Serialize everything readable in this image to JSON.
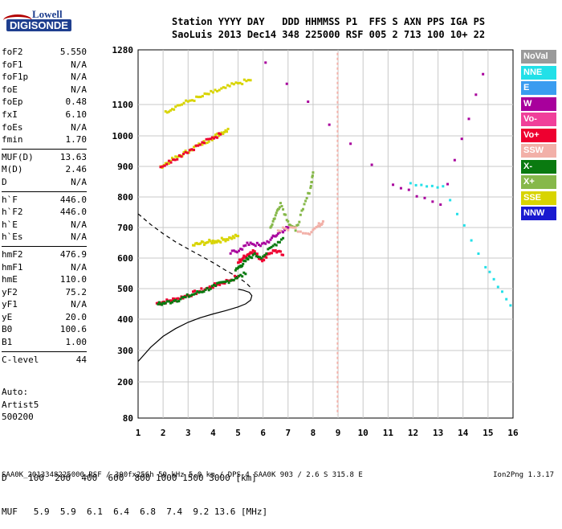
{
  "logo": {
    "top": "Lowell",
    "bottom": "DIGISONDE"
  },
  "header": {
    "line1": "Station YYYY DAY   DDD HHMMSS P1  FFS S AXN PPS IGA PS",
    "line2": "SaoLuis 2013 Dec14 348 225000 RSF 005 2 713 100 10+ 22"
  },
  "params": [
    [
      [
        "foF2",
        "5.550"
      ],
      [
        "foF1",
        "N/A"
      ],
      [
        "foF1p",
        "N/A"
      ],
      [
        "foE",
        "N/A"
      ],
      [
        "foEp",
        "0.48"
      ],
      [
        "fxI",
        "6.10"
      ],
      [
        "foEs",
        "N/A"
      ],
      [
        "fmin",
        "1.70"
      ]
    ],
    [
      [
        "MUF(D)",
        "13.63"
      ],
      [
        "M(D)",
        "2.46"
      ],
      [
        "D",
        "N/A"
      ]
    ],
    [
      [
        "h`F",
        "446.0"
      ],
      [
        "h`F2",
        "446.0"
      ],
      [
        "h`E",
        "N/A"
      ],
      [
        "h`Es",
        "N/A"
      ]
    ],
    [
      [
        "hmF2",
        "476.9"
      ],
      [
        "hmF1",
        "N/A"
      ],
      [
        "hmE",
        "110.0"
      ],
      [
        "yF2",
        "75.2"
      ],
      [
        "yF1",
        "N/A"
      ],
      [
        "yE",
        "20.0"
      ],
      [
        "B0",
        "100.6"
      ],
      [
        "B1",
        "1.00"
      ]
    ],
    [
      [
        "C-level",
        "44"
      ]
    ]
  ],
  "auto": {
    "line1": "Auto:",
    "line2": "Artist5",
    "line3": "500200"
  },
  "dtable": {
    "row1": "D    100  200  400  600  800 1000 1500 3000 [km]",
    "row2": "MUF   5.9  5.9  6.1  6.4  6.8  7.4  9.2 13.6 [MHz]"
  },
  "footer": {
    "left": "SAA0K_2013348225000.RSF / 300fx256h 50 kHz 5.0 km / DPS-4 SAA0K 903 / 2.6 S 315.8 E",
    "right": "Ion2Png 1.3.17"
  },
  "legend": [
    {
      "label": "NoVal",
      "color": "#9a9a9a"
    },
    {
      "label": "NNE",
      "color": "#22e0e8"
    },
    {
      "label": "E",
      "color": "#3a9cf0"
    },
    {
      "label": "W",
      "color": "#a8009c"
    },
    {
      "label": "Vo-",
      "color": "#f0409a"
    },
    {
      "label": "Vo+",
      "color": "#ee0030"
    },
    {
      "label": "SSW",
      "color": "#f2b0a8"
    },
    {
      "label": "X-",
      "color": "#0a7a10"
    },
    {
      "label": "X+",
      "color": "#86b84a"
    },
    {
      "label": "SSE",
      "color": "#d8d400"
    },
    {
      "label": "NNW",
      "color": "#1a1ad0"
    }
  ],
  "chart_data": {
    "type": "scatter",
    "title": "",
    "xlabel": "",
    "ylabel": "",
    "xlim": [
      1,
      16
    ],
    "x_ticks": [
      1,
      2,
      3,
      4,
      5,
      6,
      7,
      8,
      9,
      10,
      11,
      12,
      13,
      14,
      15,
      16
    ],
    "ylim": [
      80,
      1280
    ],
    "y_ticks": [
      80,
      200,
      300,
      400,
      500,
      600,
      700,
      800,
      900,
      1000,
      1100,
      1280
    ],
    "y_scale": "custom-nonlinear",
    "grid": true,
    "lines": [
      {
        "name": "",
        "style": "solid",
        "points": [
          [
            1.0,
            265
          ],
          [
            1.5,
            310
          ],
          [
            2.0,
            345
          ],
          [
            2.5,
            370
          ],
          [
            3.0,
            390
          ],
          [
            3.5,
            405
          ],
          [
            4.0,
            417
          ],
          [
            4.5,
            428
          ],
          [
            5.0,
            440
          ],
          [
            5.3,
            450
          ],
          [
            5.5,
            462
          ],
          [
            5.55,
            476.9
          ],
          [
            5.45,
            488
          ],
          [
            5.2,
            495
          ],
          [
            5.0,
            498
          ]
        ]
      },
      {
        "name": "",
        "style": "dashed",
        "points": [
          [
            1.0,
            745
          ],
          [
            1.5,
            710
          ],
          [
            2.0,
            680
          ],
          [
            2.5,
            653
          ],
          [
            3.0,
            630
          ],
          [
            3.5,
            608
          ],
          [
            4.0,
            585
          ],
          [
            4.5,
            560
          ],
          [
            5.0,
            537
          ],
          [
            5.3,
            520
          ],
          [
            5.55,
            500
          ]
        ]
      }
    ],
    "series": [
      {
        "name": "F2 low trace",
        "color": "#ee0030",
        "points": [
          [
            1.75,
            452
          ],
          [
            2.0,
            456
          ],
          [
            2.3,
            461
          ],
          [
            2.6,
            468
          ],
          [
            3.0,
            478
          ],
          [
            3.4,
            490
          ],
          [
            3.8,
            502
          ],
          [
            4.2,
            514
          ],
          [
            4.6,
            526
          ],
          [
            5.0,
            540
          ]
        ]
      },
      {
        "name": "F2 low trace X",
        "color": "#0a7a10",
        "points": [
          [
            1.8,
            449
          ],
          [
            2.1,
            453
          ],
          [
            2.5,
            462
          ],
          [
            2.9,
            472
          ],
          [
            3.3,
            484
          ],
          [
            3.7,
            496
          ],
          [
            4.1,
            509
          ],
          [
            4.5,
            522
          ],
          [
            4.9,
            534
          ],
          [
            5.3,
            548
          ]
        ]
      },
      {
        "name": "F2 second hop",
        "color": "#d8d400",
        "points": [
          [
            1.9,
            900
          ],
          [
            2.3,
            918
          ],
          [
            2.7,
            936
          ],
          [
            3.1,
            955
          ],
          [
            3.5,
            972
          ],
          [
            3.9,
            990
          ],
          [
            4.3,
            1008
          ],
          [
            4.6,
            1022
          ]
        ]
      },
      {
        "name": "F2 second hop O",
        "color": "#ee0030",
        "points": [
          [
            1.9,
            898
          ],
          [
            2.4,
            922
          ],
          [
            2.9,
            946
          ],
          [
            3.4,
            968
          ],
          [
            3.9,
            990
          ],
          [
            4.3,
            1005
          ]
        ]
      },
      {
        "name": "upper trace",
        "color": "#d8d400",
        "points": [
          [
            2.1,
            1078
          ],
          [
            2.5,
            1093
          ],
          [
            3.0,
            1110
          ],
          [
            3.5,
            1125
          ],
          [
            4.0,
            1140
          ],
          [
            4.5,
            1155
          ],
          [
            5.0,
            1170
          ],
          [
            5.5,
            1180
          ]
        ]
      },
      {
        "name": "oblique 620 band",
        "color": "#d8d400",
        "points": [
          [
            3.2,
            642
          ],
          [
            3.5,
            648
          ],
          [
            3.8,
            652
          ],
          [
            4.1,
            655
          ],
          [
            4.4,
            660
          ],
          [
            4.7,
            666
          ],
          [
            5.0,
            672
          ]
        ]
      },
      {
        "name": "cusp cluster O",
        "color": "#ee0030",
        "points": [
          [
            5.0,
            585
          ],
          [
            5.2,
            600
          ],
          [
            5.4,
            612
          ],
          [
            5.6,
            625
          ],
          [
            5.8,
            605
          ],
          [
            6.0,
            595
          ],
          [
            6.2,
            615
          ],
          [
            6.5,
            625
          ],
          [
            6.8,
            610
          ]
        ]
      },
      {
        "name": "cusp cluster W",
        "color": "#a8009c",
        "points": [
          [
            4.7,
            615
          ],
          [
            5.1,
            630
          ],
          [
            5.5,
            650
          ],
          [
            5.9,
            640
          ],
          [
            6.3,
            660
          ],
          [
            6.6,
            680
          ],
          [
            7.0,
            700
          ]
        ]
      },
      {
        "name": "cusp cluster X",
        "color": "#0a7a10",
        "points": [
          [
            4.9,
            560
          ],
          [
            5.1,
            575
          ],
          [
            5.3,
            590
          ],
          [
            5.6,
            610
          ],
          [
            6.0,
            605
          ],
          [
            6.4,
            640
          ],
          [
            6.8,
            665
          ]
        ]
      },
      {
        "name": "high spread F",
        "color": "#86b84a",
        "points": [
          [
            6.3,
            700
          ],
          [
            6.5,
            740
          ],
          [
            6.7,
            780
          ],
          [
            7.0,
            720
          ],
          [
            7.3,
            690
          ],
          [
            7.6,
            760
          ],
          [
            7.9,
            830
          ],
          [
            8.0,
            880
          ]
        ]
      },
      {
        "name": "high spread F SSW",
        "color": "#f2b0a8",
        "points": [
          [
            6.6,
            690
          ],
          [
            7.2,
            700
          ],
          [
            7.8,
            680
          ],
          [
            8.2,
            705
          ],
          [
            8.4,
            720
          ]
        ]
      },
      {
        "name": "isolated NNE",
        "color": "#22e0e8",
        "points": [
          [
            11.9,
            845
          ],
          [
            13.2,
            835
          ],
          [
            14.9,
            570
          ],
          [
            15.9,
            445
          ]
        ]
      },
      {
        "name": "isolated W",
        "color": "#a8009c",
        "points": [
          [
            6.1,
            1238
          ],
          [
            11.2,
            840
          ],
          [
            13.1,
            775
          ],
          [
            14.8,
            1200
          ]
        ]
      }
    ],
    "vertical_line": {
      "x": 8.98,
      "color": "#f2b0a8"
    }
  }
}
